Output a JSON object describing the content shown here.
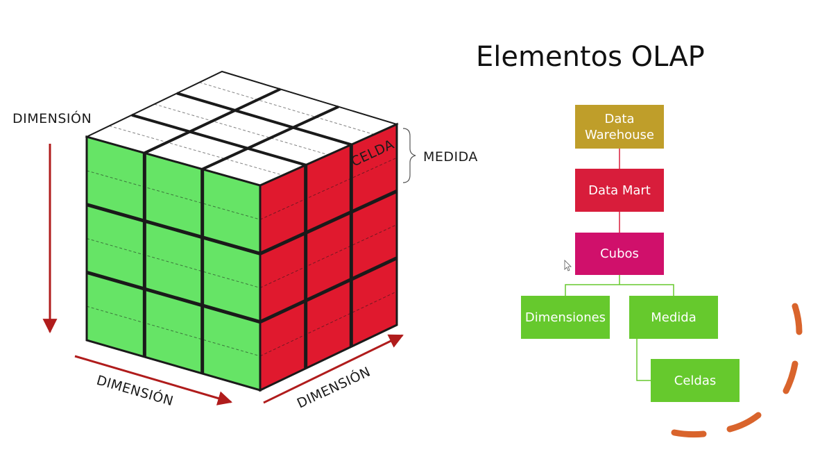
{
  "slide": {
    "title": "Elementos OLAP"
  },
  "cube": {
    "label_dimension_vertical": "DIMENSIÓN",
    "label_dimension_front": "DIMENSIÓN",
    "label_dimension_side": "DIMENSIÓN",
    "label_cell": "CELDA",
    "label_measure": "MEDIDA",
    "colors": {
      "front": "#66e466",
      "side": "#e0192e",
      "top": "#ffffff",
      "arrow": "#b01c1c",
      "grid": "#1a1a1a"
    }
  },
  "hierarchy": {
    "data_warehouse": {
      "line1": "Data",
      "line2": "Warehouse",
      "color": "#bf9e2a"
    },
    "data_mart": {
      "label": "Data Mart",
      "color": "#d81d3b"
    },
    "cubos": {
      "label": "Cubos",
      "color": "#d0106b"
    },
    "dimensiones": {
      "label": "Dimensiones",
      "color": "#66c92d"
    },
    "medida": {
      "label": "Medida",
      "color": "#66c92d"
    },
    "celdas": {
      "label": "Celdas",
      "color": "#66c92d"
    },
    "connector_colors": {
      "red": "#d81d3b",
      "green": "#66c92d"
    }
  },
  "annotation": {
    "stroke_color": "#d9642c",
    "style": "dashed-arc"
  }
}
